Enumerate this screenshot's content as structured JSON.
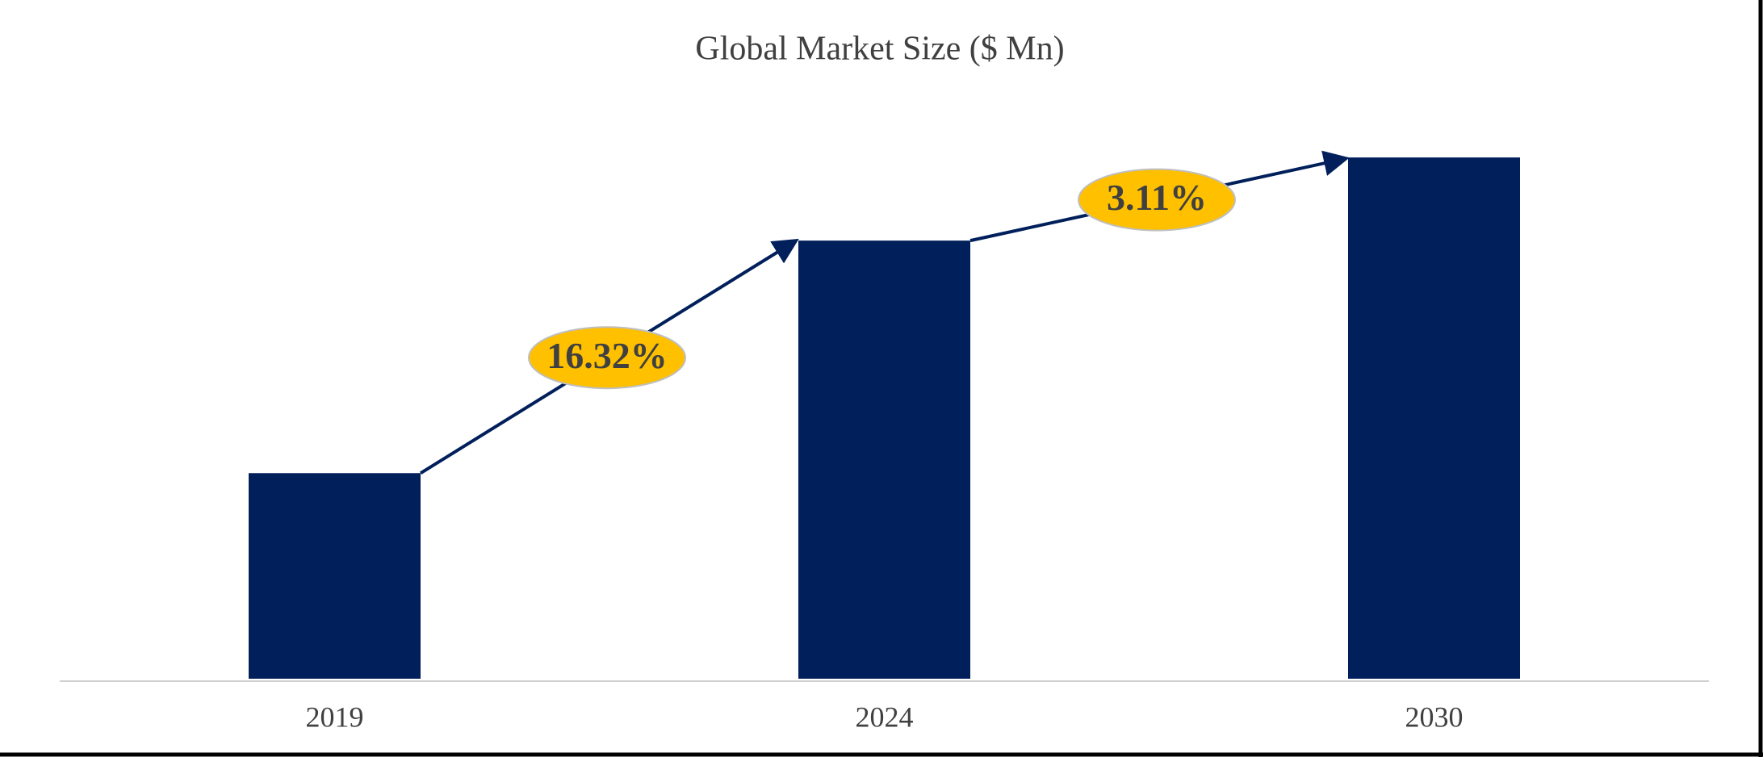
{
  "chart_data": {
    "type": "bar",
    "title": "Global Market Size ($ Mn)",
    "categories": [
      "2019",
      "2024",
      "2030"
    ],
    "values": [
      183,
      390,
      464
    ],
    "color": "#001f5b",
    "ylim": [
      0,
      500
    ],
    "annotations": [
      "16.32%",
      "3.11%"
    ]
  }
}
